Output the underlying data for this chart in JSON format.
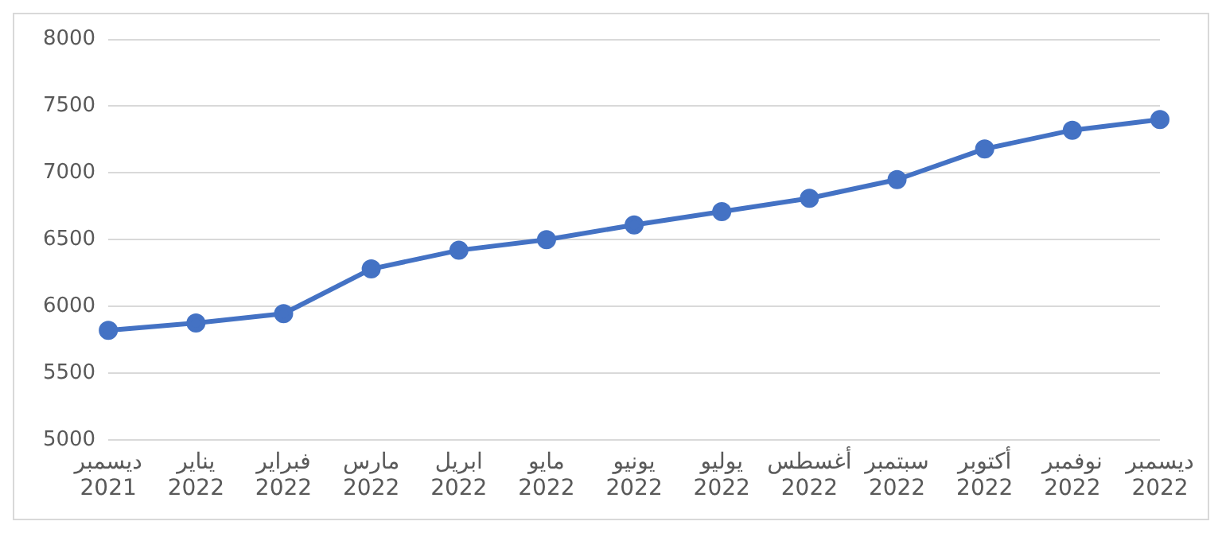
{
  "chart_data": {
    "type": "line",
    "categories": [
      "ديسمبر 2021",
      "يناير 2022",
      "فبراير 2022",
      "مارس 2022",
      "ابريل 2022",
      "مايو 2022",
      "يونيو 2022",
      "يوليو 2022",
      "أغسطس 2022",
      "سبتمبر 2022",
      "أكتوبر 2022",
      "نوفمبر 2022",
      "ديسمبر 2022"
    ],
    "series": [
      {
        "color": "#4472c4",
        "values": [
          5820,
          5875,
          5945,
          6280,
          6420,
          6500,
          6610,
          6710,
          6810,
          6950,
          7180,
          7320,
          7400
        ]
      }
    ],
    "ylim": [
      5000,
      8000
    ],
    "yticks": [
      5000,
      5500,
      6000,
      6500,
      7000,
      7500,
      8000
    ],
    "grid": "y",
    "marker": "circle",
    "line_style": "solid",
    "legend": false
  }
}
